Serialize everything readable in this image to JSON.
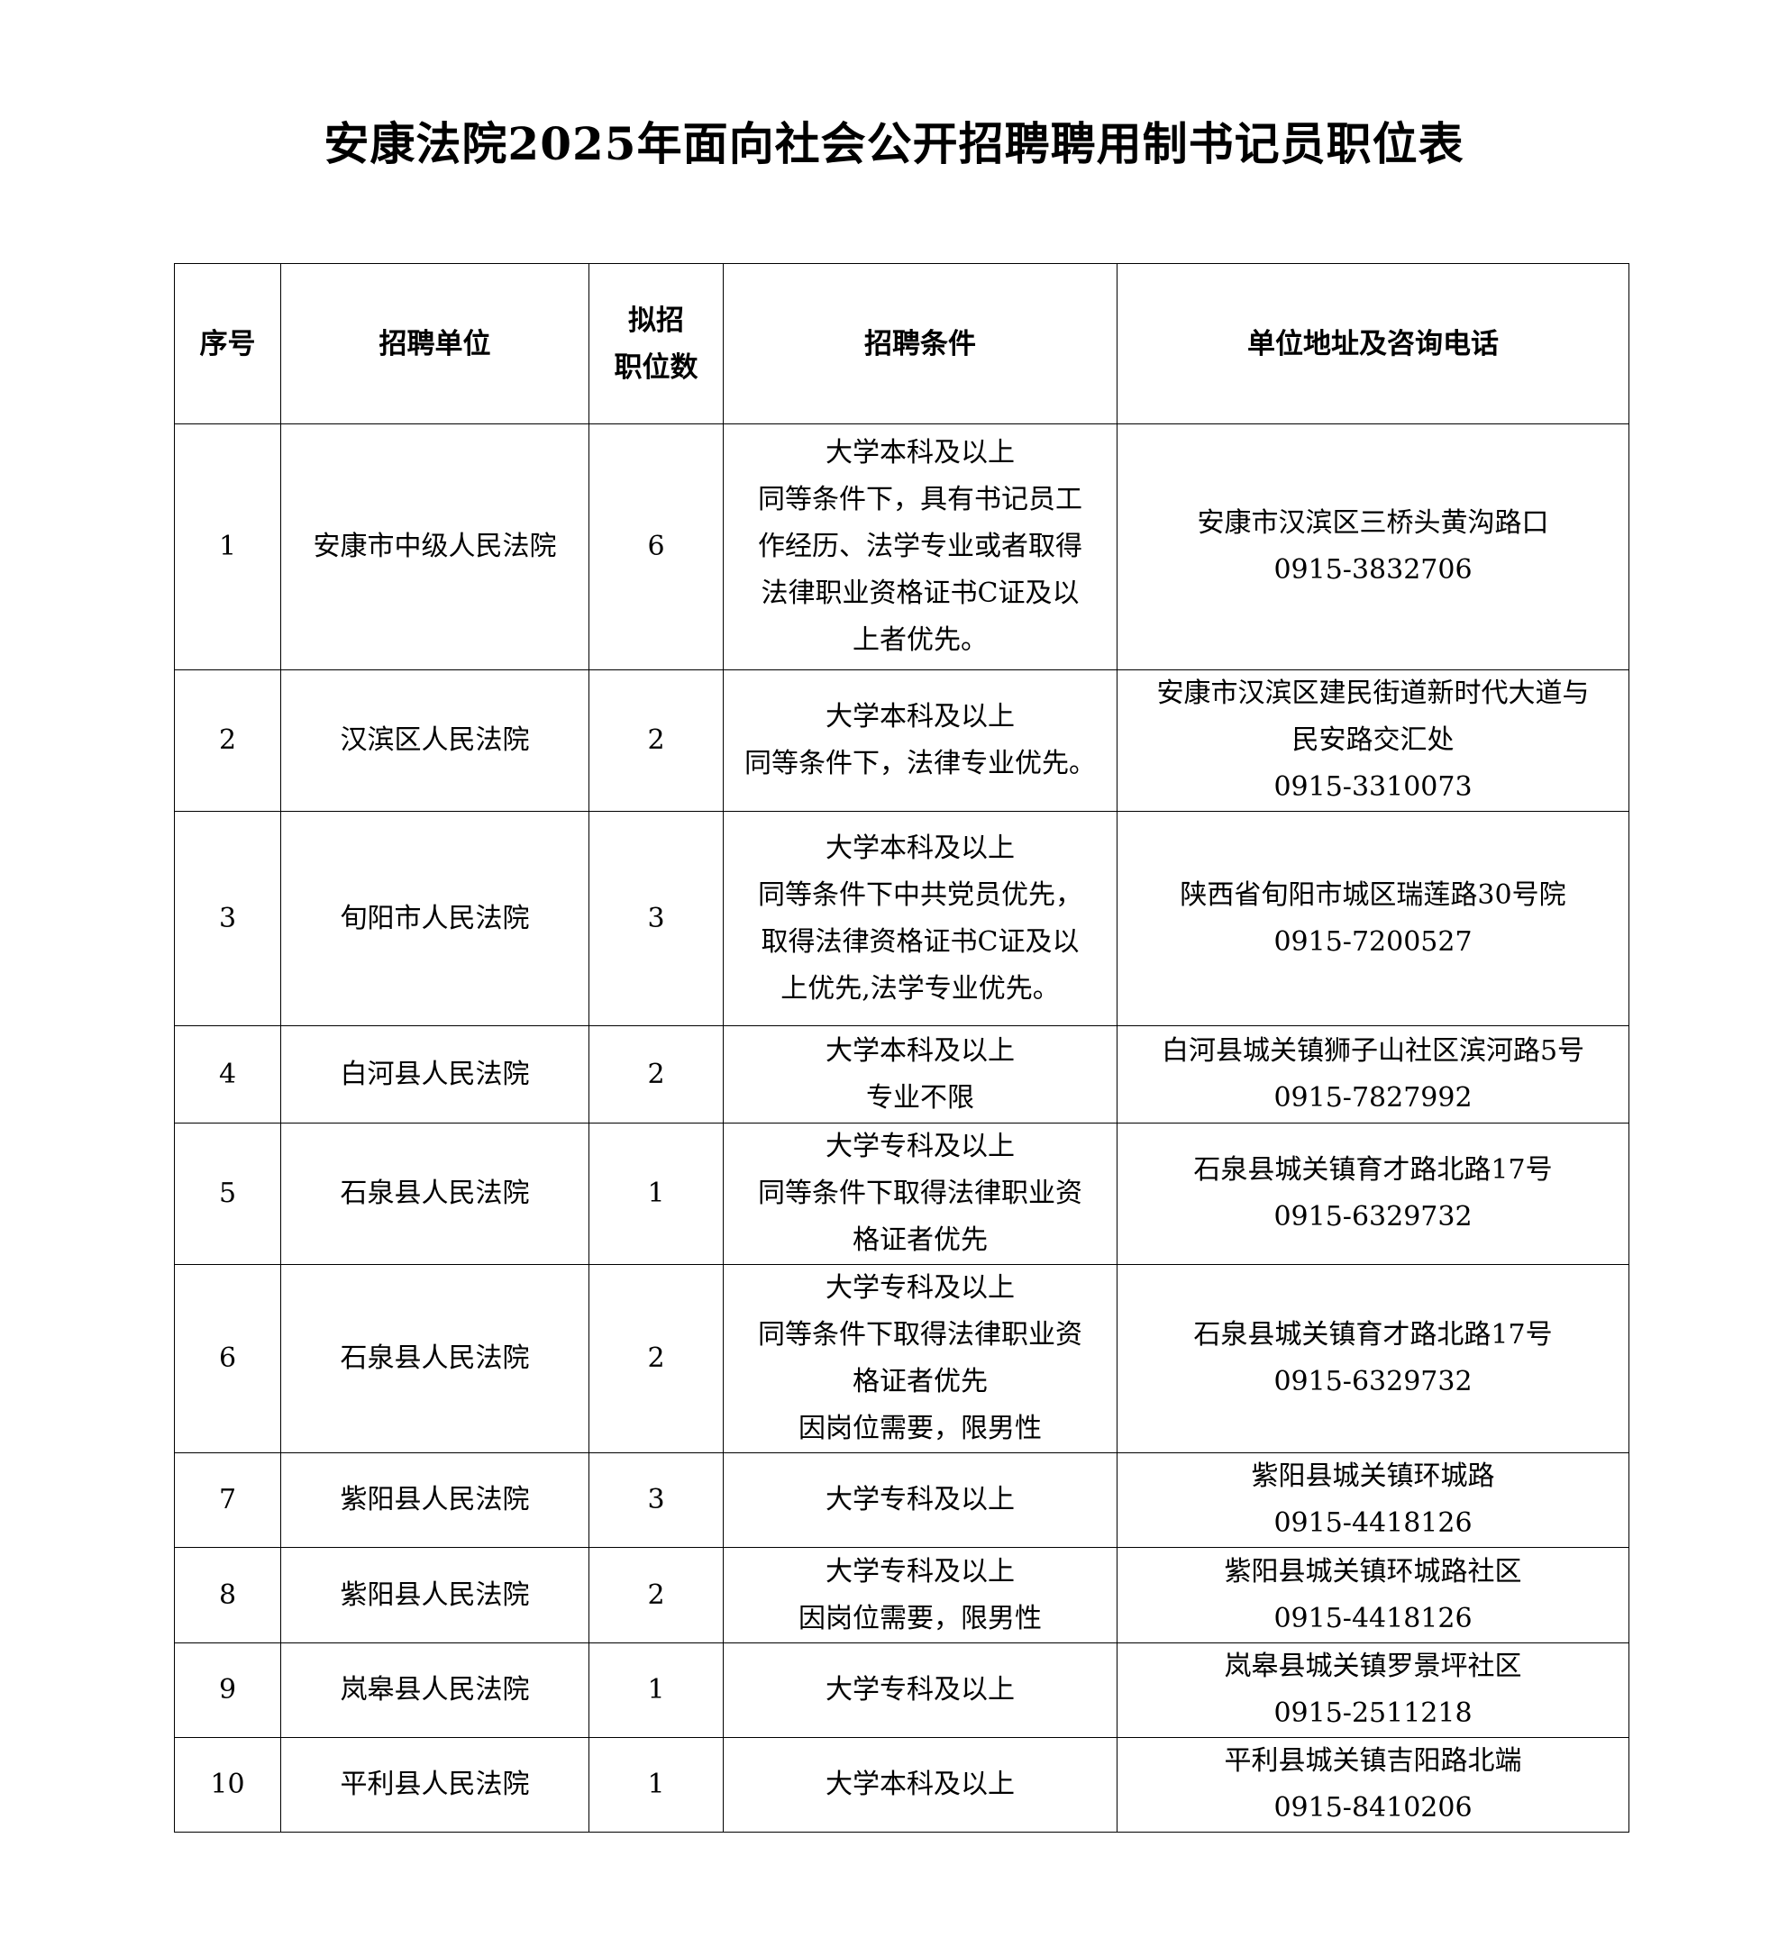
{
  "title": "安康法院2025年面向社会公开招聘聘用制书记员职位表",
  "headers": [
    [
      "序号"
    ],
    [
      "招聘单位"
    ],
    [
      "拟招",
      "职位数"
    ],
    [
      "招聘条件"
    ],
    [
      "单位地址及咨询电话"
    ]
  ],
  "rows": [
    {
      "no": "1",
      "unit": "安康市中级人民法院",
      "count": "6",
      "conditions": [
        "大学本科及以上",
        "同等条件下，具有书记员工",
        "作经历、法学专业或者取得",
        "法律职业资格证书C证及以",
        "上者优先。"
      ],
      "address": [
        "安康市汉滨区三桥头黄沟路口",
        "0915-3832706"
      ]
    },
    {
      "no": "2",
      "unit": "汉滨区人民法院",
      "count": "2",
      "conditions": [
        "大学本科及以上",
        "同等条件下，法律专业优先。"
      ],
      "address": [
        "安康市汉滨区建民街道新时代大道与",
        "民安路交汇处",
        "0915-3310073"
      ]
    },
    {
      "no": "3",
      "unit": "旬阳市人民法院",
      "count": "3",
      "conditions": [
        "大学本科及以上",
        "同等条件下中共党员优先，",
        "取得法律资格证书C证及以",
        "上优先,法学专业优先。"
      ],
      "address": [
        "陕西省旬阳市城区瑞莲路30号院",
        "0915-7200527"
      ]
    },
    {
      "no": "4",
      "unit": "白河县人民法院",
      "count": "2",
      "conditions": [
        "大学本科及以上",
        "专业不限"
      ],
      "address": [
        "白河县城关镇狮子山社区滨河路5号",
        "0915-7827992"
      ]
    },
    {
      "no": "5",
      "unit": "石泉县人民法院",
      "count": "1",
      "conditions": [
        "大学专科及以上",
        "同等条件下取得法律职业资",
        "格证者优先"
      ],
      "address": [
        "石泉县城关镇育才路北路17号",
        "0915-6329732"
      ]
    },
    {
      "no": "6",
      "unit": "石泉县人民法院",
      "count": "2",
      "conditions": [
        "大学专科及以上",
        "同等条件下取得法律职业资",
        "格证者优先",
        "因岗位需要，限男性"
      ],
      "address": [
        "石泉县城关镇育才路北路17号",
        "0915-6329732"
      ]
    },
    {
      "no": "7",
      "unit": "紫阳县人民法院",
      "count": "3",
      "conditions": [
        "大学专科及以上"
      ],
      "address": [
        "紫阳县城关镇环城路",
        "0915-4418126"
      ]
    },
    {
      "no": "8",
      "unit": "紫阳县人民法院",
      "count": "2",
      "conditions": [
        "大学专科及以上",
        "因岗位需要，限男性"
      ],
      "address": [
        "紫阳县城关镇环城路社区",
        "0915-4418126"
      ]
    },
    {
      "no": "9",
      "unit": "岚皋县人民法院",
      "count": "1",
      "conditions": [
        "大学专科及以上"
      ],
      "address": [
        "岚皋县城关镇罗景坪社区",
        "0915-2511218"
      ]
    },
    {
      "no": "10",
      "unit": "平利县人民法院",
      "count": "1",
      "conditions": [
        "大学本科及以上"
      ],
      "address": [
        "平利县城关镇吉阳路北端",
        "0915-8410206"
      ]
    }
  ]
}
